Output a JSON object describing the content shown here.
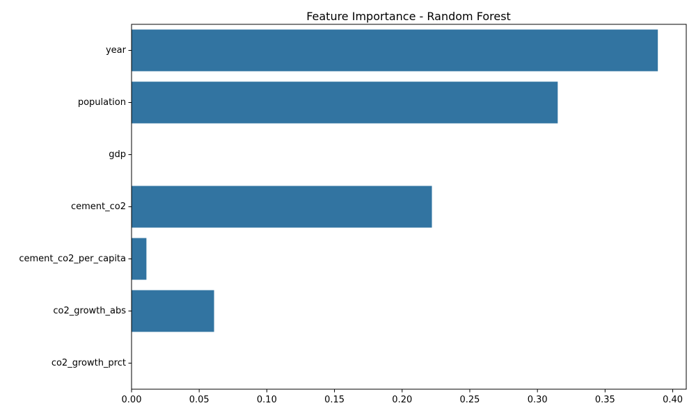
{
  "chart_data": {
    "type": "bar",
    "orientation": "horizontal",
    "title": "Feature Importance - Random Forest",
    "xlabel": "",
    "ylabel": "",
    "categories": [
      "year",
      "population",
      "gdp",
      "cement_co2",
      "cement_co2_per_capita",
      "co2_growth_abs",
      "co2_growth_prct"
    ],
    "values": [
      0.389,
      0.315,
      0.0,
      0.222,
      0.011,
      0.061,
      0.0
    ],
    "xlim": [
      0,
      0.41
    ],
    "xticks": [
      0.0,
      0.05,
      0.1,
      0.15,
      0.2,
      0.25,
      0.3,
      0.35,
      0.4
    ],
    "xtick_labels": [
      "0.00",
      "0.05",
      "0.10",
      "0.15",
      "0.20",
      "0.25",
      "0.30",
      "0.35",
      "0.40"
    ],
    "bar_color": "#3274a1",
    "grid": false,
    "legend": "none"
  }
}
